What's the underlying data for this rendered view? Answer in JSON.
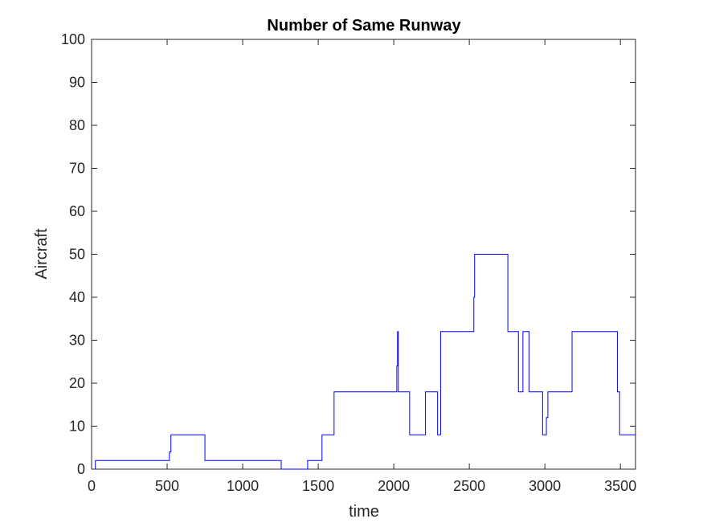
{
  "chart_data": {
    "type": "line",
    "title": "Number of Same Runway",
    "xlabel": "time",
    "ylabel": "Aircraft",
    "xlim": [
      0,
      3600
    ],
    "ylim": [
      0,
      100
    ],
    "xticks": [
      0,
      500,
      1000,
      1500,
      2000,
      2500,
      3000,
      3500
    ],
    "xtick_labels": [
      "0",
      "500",
      "1000",
      "1500",
      "2000",
      "2500",
      "3000",
      "3500"
    ],
    "yticks": [
      0,
      10,
      20,
      30,
      40,
      50,
      60,
      70,
      80,
      90,
      100
    ],
    "ytick_labels": [
      "0",
      "10",
      "20",
      "30",
      "40",
      "50",
      "60",
      "70",
      "80",
      "90",
      "100"
    ],
    "grid": false,
    "colors": {
      "line": "#0000ff",
      "axes": "#262626"
    },
    "series": [
      {
        "name": "Aircraft",
        "step": true,
        "x": [
          0,
          25,
          515,
          525,
          750,
          1255,
          1430,
          1525,
          1605,
          2020,
          2025,
          2030,
          2040,
          2105,
          2210,
          2290,
          2310,
          2320,
          2530,
          2535,
          2755,
          2825,
          2855,
          2895,
          2985,
          3010,
          3020,
          3180,
          3480,
          3495,
          3600
        ],
        "y": [
          0,
          2,
          4,
          8,
          2,
          0,
          2,
          8,
          18,
          24,
          32,
          18,
          18,
          8,
          18,
          8,
          32,
          32,
          40,
          50,
          32,
          18,
          32,
          18,
          8,
          12,
          18,
          32,
          18,
          8,
          8
        ]
      }
    ]
  }
}
